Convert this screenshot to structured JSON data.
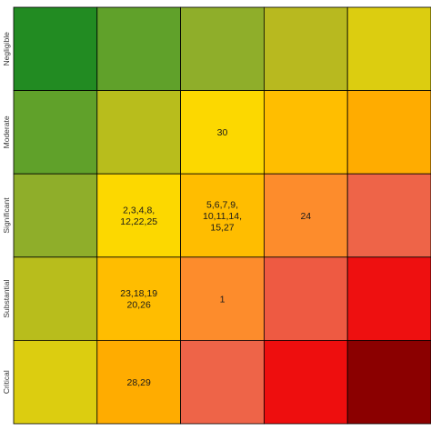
{
  "chart_data": {
    "type": "heatmap",
    "title": "",
    "xlabel": "",
    "ylabel": "",
    "rows": [
      "Negligible",
      "Moderate",
      "Significant",
      "Substantial",
      "Critical"
    ],
    "columns": [
      "",
      "",
      "",
      "",
      ""
    ],
    "cells": [
      [
        {
          "color": "#228b22",
          "labels": []
        },
        {
          "color": "#60a12a",
          "labels": []
        },
        {
          "color": "#8fae2a",
          "labels": []
        },
        {
          "color": "#b8b91f",
          "labels": []
        },
        {
          "color": "#dccd10",
          "labels": []
        }
      ],
      [
        {
          "color": "#60a12a",
          "labels": []
        },
        {
          "color": "#b8bd1c",
          "labels": []
        },
        {
          "color": "#fcd800",
          "labels": [
            "30"
          ]
        },
        {
          "color": "#ffbe00",
          "labels": []
        },
        {
          "color": "#ffac00",
          "labels": []
        }
      ],
      [
        {
          "color": "#8fae2a",
          "labels": []
        },
        {
          "color": "#fcd800",
          "labels": [
            "2,3,4,8,",
            "12,22,25"
          ]
        },
        {
          "color": "#ffbd00",
          "labels": [
            "5,6,7,9,",
            "10,11,14,",
            "15,27"
          ]
        },
        {
          "color": "#fd8c2c",
          "labels": [
            "24"
          ]
        },
        {
          "color": "#ee6448",
          "labels": []
        }
      ],
      [
        {
          "color": "#b8bd1c",
          "labels": []
        },
        {
          "color": "#ffbd00",
          "labels": [
            "23,18,19",
            "20,26"
          ]
        },
        {
          "color": "#fd8c2c",
          "labels": [
            "1"
          ]
        },
        {
          "color": "#ee5a42",
          "labels": []
        },
        {
          "color": "#ee1010",
          "labels": []
        }
      ],
      [
        {
          "color": "#dccd10",
          "labels": []
        },
        {
          "color": "#ffac00",
          "labels": [
            "28,29"
          ]
        },
        {
          "color": "#ee6448",
          "labels": []
        },
        {
          "color": "#ee0e0e",
          "labels": []
        },
        {
          "color": "#8b0000",
          "labels": []
        }
      ]
    ],
    "grid_line_color": "#000000"
  }
}
